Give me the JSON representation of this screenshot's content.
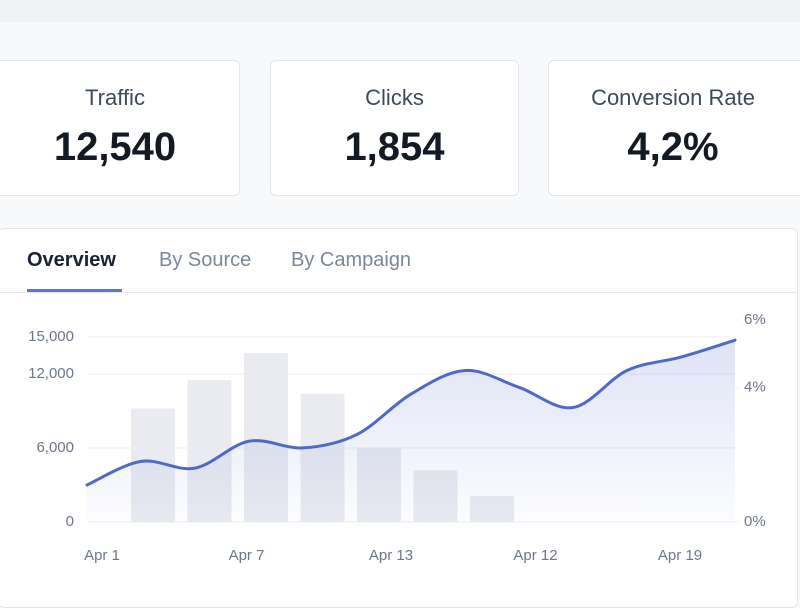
{
  "cards": [
    {
      "label": "Traffic",
      "value": "12,540"
    },
    {
      "label": "Clicks",
      "value": "1,854"
    },
    {
      "label": "Conversion Rate",
      "value": "4,2%"
    }
  ],
  "tabs": [
    "Overview",
    "By Source",
    "By Campaign"
  ],
  "chart_data": {
    "type": "combo",
    "x_labels": [
      "Apr 1",
      "Apr 7",
      "Apr 13",
      "Apr 12",
      "Apr 19"
    ],
    "ylim": [
      0,
      15000
    ],
    "yticks": [
      {
        "value": 0,
        "label": "0"
      },
      {
        "value": 6000,
        "label": "6,000"
      },
      {
        "value": 12000,
        "label": "12,000"
      },
      {
        "value": 15000,
        "label": "15,000"
      }
    ],
    "y2lim": [
      0,
      6
    ],
    "y2ticks": [
      {
        "value": 0,
        "label": "0%"
      },
      {
        "value": 4,
        "label": "4%"
      },
      {
        "value": 6,
        "label": "6%"
      }
    ],
    "grid": true,
    "series": [
      {
        "type": "bar",
        "color": "#e9ebf0",
        "values": [
          9200,
          11500,
          13700,
          10400,
          6000,
          4200,
          2100
        ]
      },
      {
        "type": "line",
        "axis": "y2",
        "color": "#5069c4",
        "values": [
          1.1,
          1.8,
          1.6,
          2.4,
          2.2,
          2.6,
          3.8,
          4.5,
          4.0,
          3.4,
          4.5,
          4.9,
          5.4
        ]
      }
    ]
  }
}
